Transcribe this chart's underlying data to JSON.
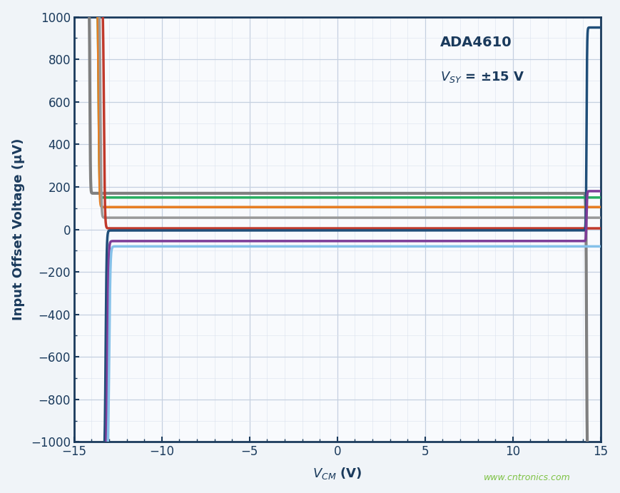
{
  "ylabel": "Input Offset Voltage (μV)",
  "xlim": [
    -15,
    15
  ],
  "ylim": [
    -1000,
    1000
  ],
  "xticks": [
    -15,
    -10,
    -5,
    0,
    5,
    10,
    15
  ],
  "yticks": [
    -1000,
    -800,
    -600,
    -400,
    -200,
    0,
    200,
    400,
    600,
    800,
    1000
  ],
  "watermark": "www.cntronics.com",
  "bg_color": "#f0f4f8",
  "plot_bg": "#f8fafd",
  "grid_major_color": "#c5d0e0",
  "grid_minor_color": "#dde4ef",
  "border_color": "#1a3a5c",
  "title_color": "#1a3a5c",
  "watermark_color": "#7dc243",
  "line_specs": [
    {
      "color": "#808080",
      "flat_y": 170,
      "xlk": -14.1,
      "xrk": 14.2,
      "lext": 1100,
      "rext": -1100,
      "ls": 30,
      "rs": 30,
      "lw": 3.0
    },
    {
      "color": "#27ae60",
      "flat_y": 150,
      "xlk": -13.6,
      "xrk": 14.2,
      "lext": 1100,
      "rext": 150,
      "ls": 20,
      "rs": 30,
      "lw": 2.5
    },
    {
      "color": "#e67e22",
      "flat_y": 105,
      "xlk": -13.6,
      "xrk": 14.2,
      "lext": 1100,
      "rext": 105,
      "ls": 20,
      "rs": 30,
      "lw": 2.5
    },
    {
      "color": "#999999",
      "flat_y": 55,
      "xlk": -13.5,
      "xrk": 14.2,
      "lext": 1100,
      "rext": 55,
      "ls": 20,
      "rs": 30,
      "lw": 2.5
    },
    {
      "color": "#c0392b",
      "flat_y": 5,
      "xlk": -13.3,
      "xrk": 14.2,
      "lext": 1100,
      "rext": 5,
      "ls": 18,
      "rs": 30,
      "lw": 2.5
    },
    {
      "color": "#1f4e79",
      "flat_y": -5,
      "xlk": -13.2,
      "xrk": 14.2,
      "lext": -1100,
      "rext": 950,
      "ls": 18,
      "rs": 30,
      "lw": 2.5
    },
    {
      "color": "#7d3c98",
      "flat_y": -55,
      "xlk": -13.1,
      "xrk": 14.2,
      "lext": -1100,
      "rext": 180,
      "ls": 16,
      "rs": 30,
      "lw": 2.5
    },
    {
      "color": "#85c1e9",
      "flat_y": -80,
      "xlk": -13.0,
      "xrk": 14.2,
      "lext": -1100,
      "rext": -80,
      "ls": 15,
      "rs": 30,
      "lw": 2.5
    }
  ]
}
